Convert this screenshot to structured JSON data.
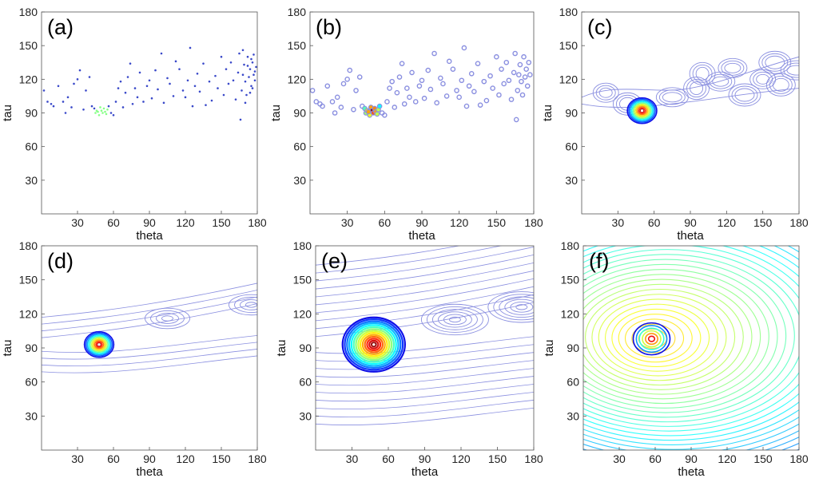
{
  "chart_data": [
    {
      "panel": "(a)",
      "type": "scatter",
      "rendering": "points",
      "xlabel": "theta",
      "ylabel": "tau",
      "xlim": [
        0,
        180
      ],
      "ylim": [
        0,
        180
      ],
      "xticks": [
        30,
        60,
        90,
        120,
        150,
        180
      ],
      "yticks": [
        30,
        60,
        90,
        120,
        150,
        180
      ],
      "peak": [
        50,
        92
      ],
      "points": [
        [
          2,
          110
        ],
        [
          5,
          100
        ],
        [
          8,
          98
        ],
        [
          10,
          96
        ],
        [
          14,
          114
        ],
        [
          18,
          100
        ],
        [
          20,
          90
        ],
        [
          22,
          104
        ],
        [
          25,
          95
        ],
        [
          27,
          116
        ],
        [
          30,
          120
        ],
        [
          32,
          128
        ],
        [
          35,
          93
        ],
        [
          37,
          110
        ],
        [
          40,
          122
        ],
        [
          42,
          96
        ],
        [
          45,
          90
        ],
        [
          44,
          94
        ],
        [
          46,
          92
        ],
        [
          48,
          88
        ],
        [
          49,
          95
        ],
        [
          50,
          92
        ],
        [
          51,
          90
        ],
        [
          52,
          94
        ],
        [
          53,
          91
        ],
        [
          54,
          89
        ],
        [
          55,
          93
        ],
        [
          47,
          91
        ],
        [
          56,
          96
        ],
        [
          58,
          90
        ],
        [
          60,
          88
        ],
        [
          62,
          100
        ],
        [
          64,
          112
        ],
        [
          66,
          118
        ],
        [
          68,
          95
        ],
        [
          70,
          108
        ],
        [
          72,
          122
        ],
        [
          74,
          134
        ],
        [
          76,
          98
        ],
        [
          78,
          112
        ],
        [
          80,
          104
        ],
        [
          82,
          126
        ],
        [
          85,
          100
        ],
        [
          88,
          114
        ],
        [
          90,
          119
        ],
        [
          92,
          103
        ],
        [
          95,
          128
        ],
        [
          97,
          111
        ],
        [
          100,
          143
        ],
        [
          102,
          99
        ],
        [
          105,
          121
        ],
        [
          107,
          116
        ],
        [
          110,
          105
        ],
        [
          112,
          136
        ],
        [
          115,
          129
        ],
        [
          118,
          110
        ],
        [
          120,
          104
        ],
        [
          122,
          119
        ],
        [
          124,
          148
        ],
        [
          126,
          96
        ],
        [
          128,
          114
        ],
        [
          130,
          125
        ],
        [
          132,
          109
        ],
        [
          135,
          134
        ],
        [
          137,
          97
        ],
        [
          140,
          118
        ],
        [
          142,
          101
        ],
        [
          145,
          123
        ],
        [
          147,
          112
        ],
        [
          150,
          140
        ],
        [
          152,
          106
        ],
        [
          154,
          129
        ],
        [
          156,
          116
        ],
        [
          158,
          135
        ],
        [
          160,
          119
        ],
        [
          162,
          102
        ],
        [
          164,
          126
        ],
        [
          165,
          143
        ],
        [
          166,
          84
        ],
        [
          167,
          110
        ],
        [
          168,
          124
        ],
        [
          169,
          133
        ],
        [
          170,
          118
        ],
        [
          171,
          106
        ],
        [
          172,
          140
        ],
        [
          173,
          122
        ],
        [
          174,
          129
        ],
        [
          175,
          114
        ],
        [
          176,
          135
        ],
        [
          177,
          124
        ],
        [
          178,
          119
        ],
        [
          179,
          131
        ],
        [
          168,
          146
        ],
        [
          170,
          99
        ],
        [
          174,
          108
        ],
        [
          176,
          112
        ],
        [
          178,
          127
        ],
        [
          172,
          132
        ],
        [
          175,
          138
        ],
        [
          177,
          142
        ]
      ]
    },
    {
      "panel": "(b)",
      "type": "scatter",
      "rendering": "blobs",
      "xlabel": "theta",
      "ylabel": "tau",
      "xlim": [
        0,
        180
      ],
      "ylim": [
        0,
        180
      ],
      "xticks": [
        30,
        60,
        90,
        120,
        150,
        180
      ],
      "yticks": [
        30,
        60,
        90,
        120,
        150,
        180
      ],
      "peak": [
        50,
        92
      ],
      "points": [
        [
          2,
          110
        ],
        [
          5,
          100
        ],
        [
          8,
          98
        ],
        [
          10,
          96
        ],
        [
          14,
          114
        ],
        [
          18,
          100
        ],
        [
          20,
          90
        ],
        [
          22,
          104
        ],
        [
          25,
          95
        ],
        [
          27,
          116
        ],
        [
          30,
          120
        ],
        [
          32,
          128
        ],
        [
          35,
          93
        ],
        [
          37,
          110
        ],
        [
          40,
          122
        ],
        [
          42,
          96
        ],
        [
          45,
          90
        ],
        [
          44,
          94
        ],
        [
          46,
          92
        ],
        [
          48,
          88
        ],
        [
          49,
          95
        ],
        [
          50,
          92
        ],
        [
          51,
          90
        ],
        [
          52,
          94
        ],
        [
          53,
          91
        ],
        [
          54,
          89
        ],
        [
          55,
          93
        ],
        [
          47,
          91
        ],
        [
          56,
          96
        ],
        [
          58,
          90
        ],
        [
          60,
          88
        ],
        [
          62,
          100
        ],
        [
          64,
          112
        ],
        [
          66,
          118
        ],
        [
          68,
          95
        ],
        [
          70,
          108
        ],
        [
          72,
          122
        ],
        [
          74,
          134
        ],
        [
          76,
          98
        ],
        [
          78,
          112
        ],
        [
          80,
          104
        ],
        [
          82,
          126
        ],
        [
          85,
          100
        ],
        [
          88,
          114
        ],
        [
          90,
          119
        ],
        [
          92,
          103
        ],
        [
          95,
          128
        ],
        [
          97,
          111
        ],
        [
          100,
          143
        ],
        [
          102,
          99
        ],
        [
          105,
          121
        ],
        [
          107,
          116
        ],
        [
          110,
          105
        ],
        [
          112,
          136
        ],
        [
          115,
          129
        ],
        [
          118,
          110
        ],
        [
          120,
          104
        ],
        [
          122,
          119
        ],
        [
          124,
          148
        ],
        [
          126,
          96
        ],
        [
          128,
          114
        ],
        [
          130,
          125
        ],
        [
          132,
          109
        ],
        [
          135,
          134
        ],
        [
          137,
          97
        ],
        [
          140,
          118
        ],
        [
          142,
          101
        ],
        [
          145,
          123
        ],
        [
          147,
          112
        ],
        [
          150,
          140
        ],
        [
          152,
          106
        ],
        [
          154,
          129
        ],
        [
          156,
          116
        ],
        [
          158,
          135
        ],
        [
          160,
          119
        ],
        [
          162,
          102
        ],
        [
          164,
          126
        ],
        [
          165,
          143
        ],
        [
          166,
          84
        ],
        [
          167,
          110
        ],
        [
          168,
          124
        ],
        [
          169,
          133
        ],
        [
          170,
          118
        ],
        [
          171,
          106
        ],
        [
          172,
          140
        ],
        [
          173,
          122
        ],
        [
          174,
          129
        ],
        [
          175,
          114
        ],
        [
          176,
          135
        ],
        [
          177,
          124
        ]
      ]
    },
    {
      "panel": "(c)",
      "type": "contour",
      "xlabel": "theta",
      "ylabel": "tau",
      "xlim": [
        0,
        180
      ],
      "ylim": [
        0,
        180
      ],
      "xticks": [
        30,
        60,
        90,
        120,
        150,
        180
      ],
      "yticks": [
        30,
        60,
        90,
        120,
        150,
        180
      ],
      "peak": [
        50,
        92
      ],
      "background_blobs": [
        [
          20,
          108
        ],
        [
          38,
          98
        ],
        [
          75,
          104
        ],
        [
          95,
          112
        ],
        [
          115,
          118
        ],
        [
          135,
          106
        ],
        [
          150,
          120
        ],
        [
          165,
          115
        ],
        [
          178,
          128
        ],
        [
          100,
          125
        ],
        [
          125,
          130
        ],
        [
          160,
          135
        ]
      ],
      "rings": 9
    },
    {
      "panel": "(d)",
      "type": "contour",
      "xlabel": "theta",
      "ylabel": "tau",
      "xlim": [
        0,
        180
      ],
      "ylim": [
        0,
        180
      ],
      "xticks": [
        30,
        60,
        90,
        120,
        150,
        180
      ],
      "yticks": [
        30,
        60,
        90,
        120,
        150,
        180
      ],
      "peak": [
        48,
        93
      ],
      "secondary": [
        [
          105,
          116
        ],
        [
          175,
          128
        ]
      ],
      "rings": 8
    },
    {
      "panel": "(e)",
      "type": "contour",
      "xlabel": "theta",
      "ylabel": "tau",
      "xlim": [
        0,
        180
      ],
      "ylim": [
        0,
        180
      ],
      "xticks": [
        30,
        60,
        90,
        120,
        150,
        180
      ],
      "yticks": [
        30,
        60,
        90,
        120,
        150,
        180
      ],
      "peak": [
        48,
        93
      ],
      "secondary": [
        [
          115,
          115
        ],
        [
          170,
          126
        ]
      ],
      "rings": 18
    },
    {
      "panel": "(f)",
      "type": "contour",
      "xlabel": "theta",
      "ylabel": "tau",
      "xlim": [
        0,
        180
      ],
      "ylim": [
        0,
        180
      ],
      "xticks": [
        30,
        60,
        90,
        120,
        150,
        180
      ],
      "yticks": [
        30,
        60,
        90,
        120,
        150,
        180
      ],
      "peak": [
        57,
        98
      ],
      "rings": 34
    }
  ],
  "palette": {
    "contour_low": "#8a8fe0",
    "point_color": "#3a49c9",
    "axis": "#555555",
    "jet_stops": [
      "#00008f",
      "#0000ff",
      "#00ffff",
      "#ffff00",
      "#ff0000",
      "#ffffff"
    ]
  }
}
